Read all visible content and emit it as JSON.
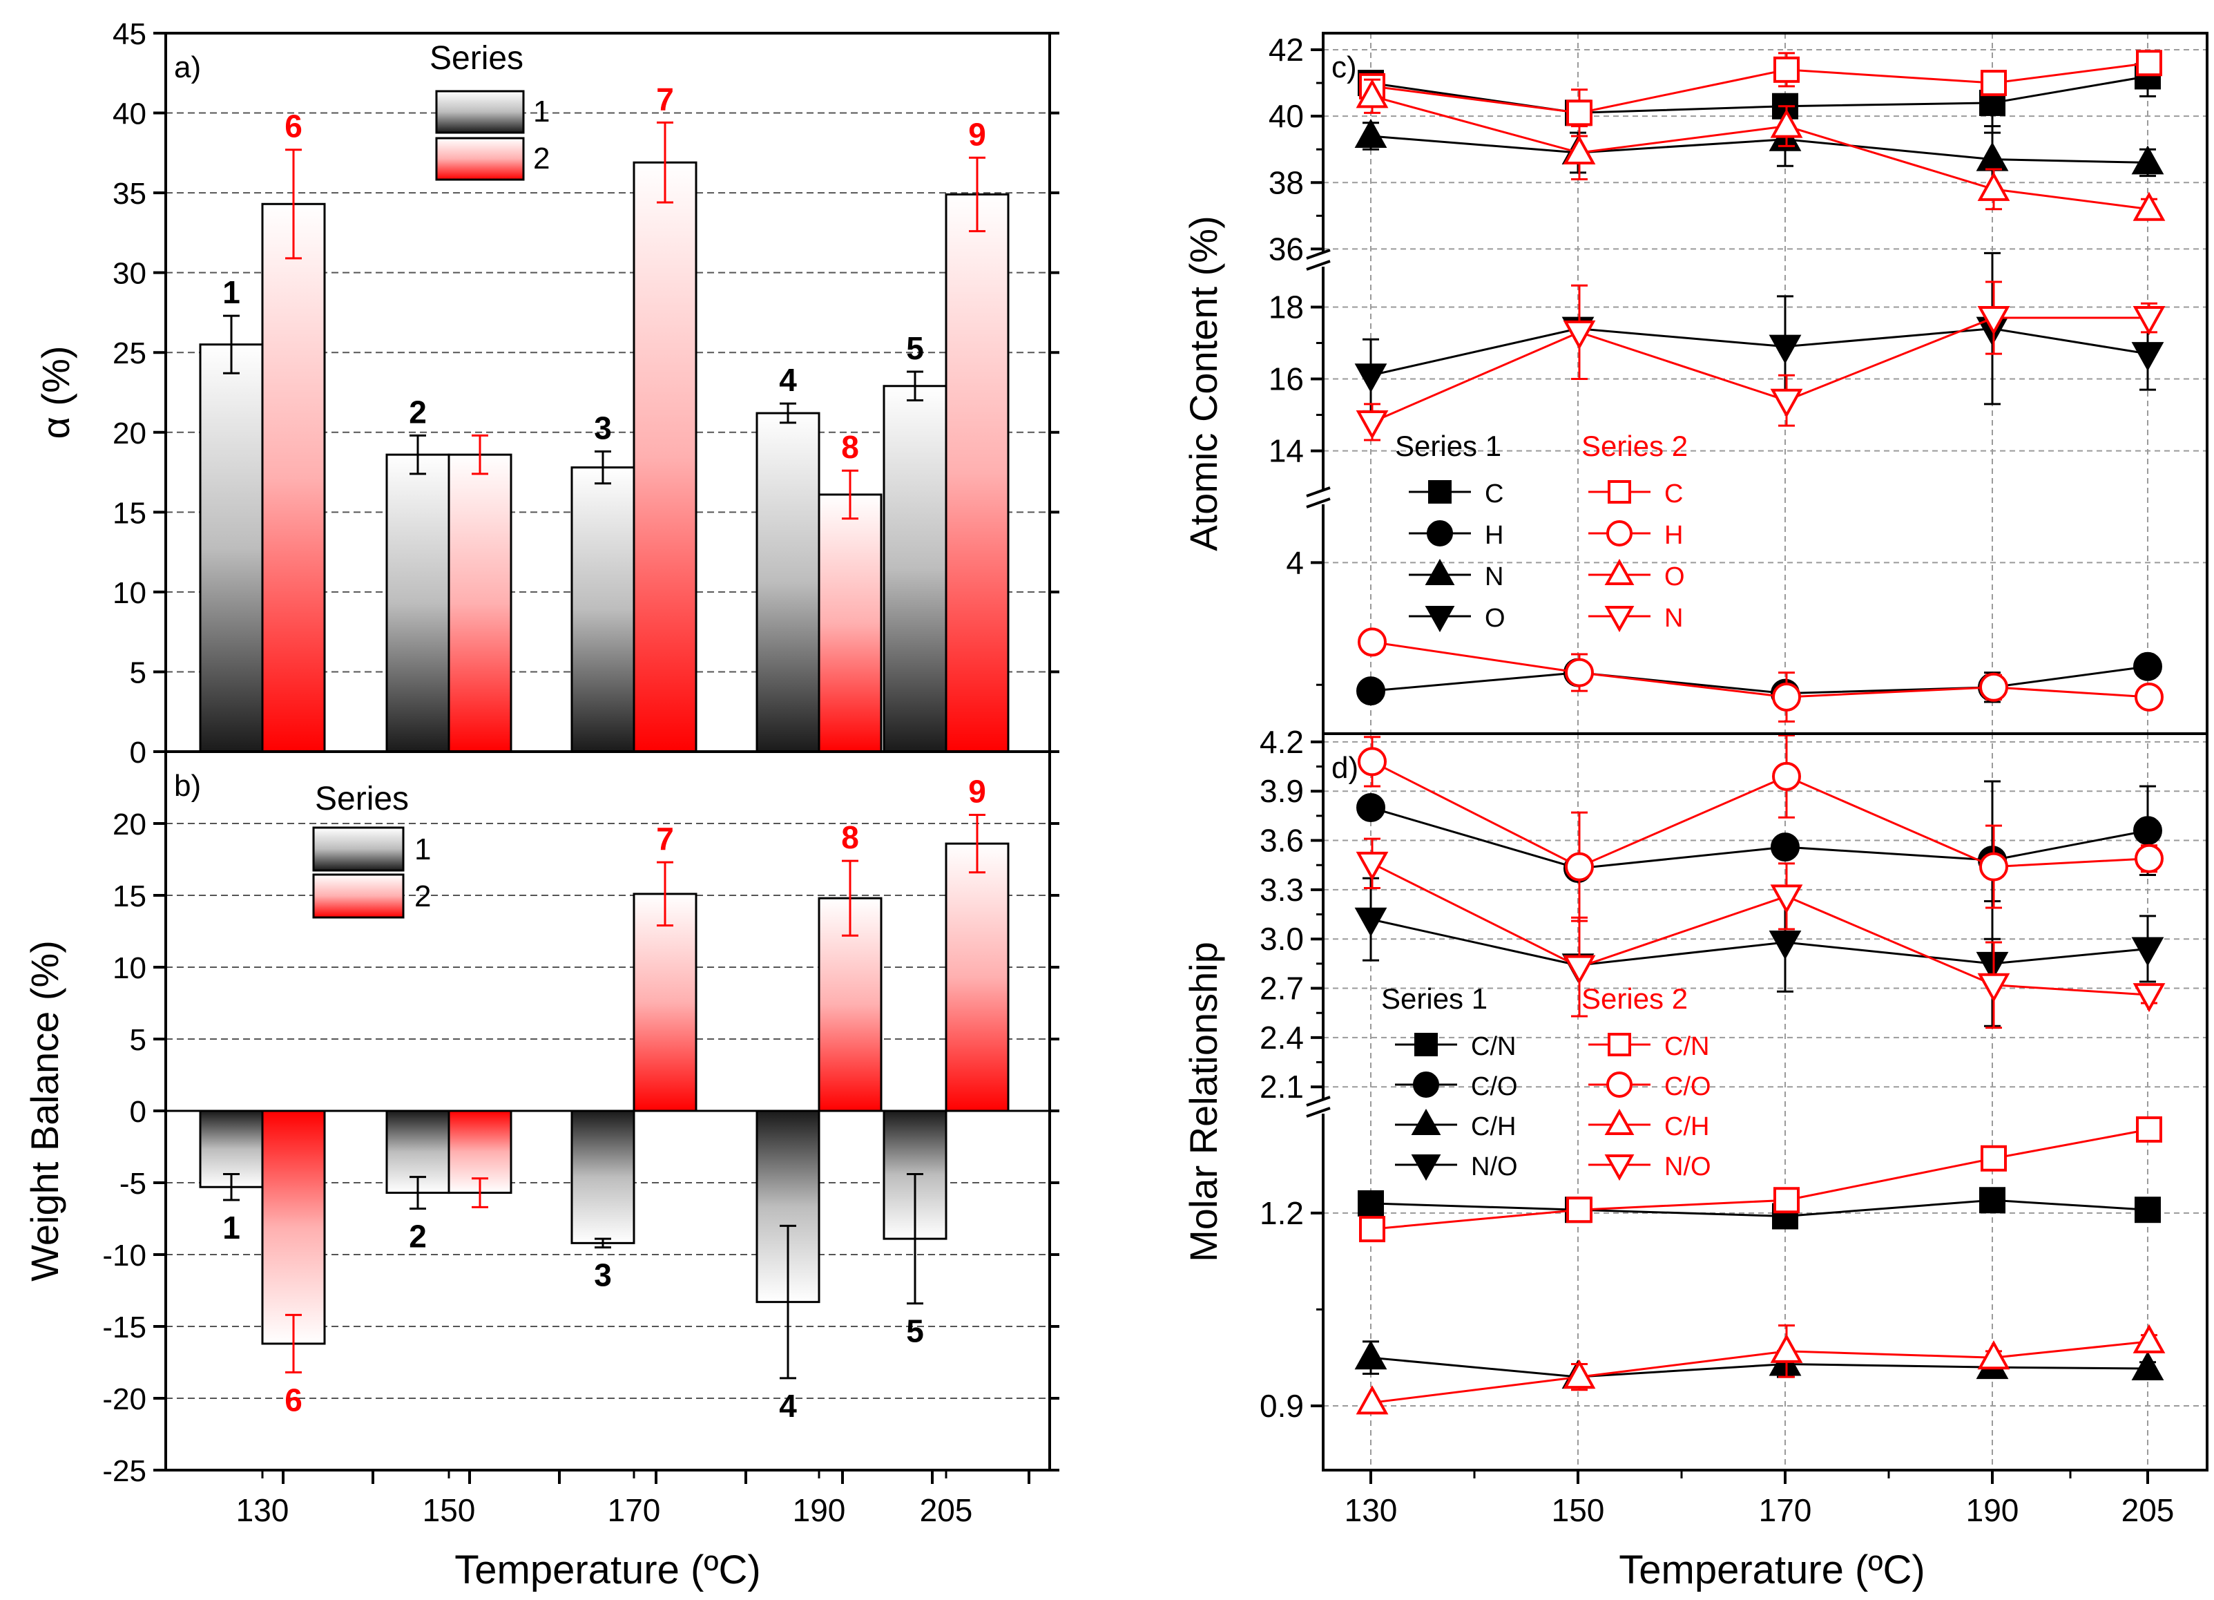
{
  "colors": {
    "series1": "#000000",
    "series2": "#ff0000",
    "grid": "#9a9a9a"
  },
  "chart_data": [
    {
      "id": "a",
      "type": "bar",
      "panel_label": "a)",
      "ylabel": "α (%)",
      "ylim": [
        0,
        45
      ],
      "yticks": [
        0,
        5,
        10,
        15,
        20,
        25,
        30,
        35,
        40,
        45
      ],
      "categories": [
        "130",
        "150",
        "170",
        "190",
        "205"
      ],
      "legend_title": "Series",
      "series": [
        {
          "name": "1",
          "values": [
            25.5,
            18.6,
            17.8,
            21.2,
            22.9
          ],
          "errors": [
            1.8,
            1.2,
            1.0,
            0.6,
            0.9
          ],
          "labels": [
            "1",
            "2",
            "3",
            "4",
            "5"
          ]
        },
        {
          "name": "2",
          "values": [
            34.3,
            18.6,
            36.9,
            16.1,
            34.9
          ],
          "errors": [
            3.4,
            1.2,
            2.5,
            1.5,
            2.3
          ],
          "labels": [
            "6",
            "",
            "7",
            "8",
            "9"
          ]
        }
      ]
    },
    {
      "id": "b",
      "type": "bar",
      "panel_label": "b)",
      "ylabel": "Weight Balance (%)",
      "xlabel": "Temperature (ºC)",
      "ylim": [
        -25,
        25
      ],
      "yticks": [
        -25,
        -20,
        -15,
        -10,
        -5,
        0,
        5,
        10,
        15,
        20
      ],
      "categories": [
        "130",
        "150",
        "170",
        "190",
        "205"
      ],
      "legend_title": "Series",
      "series": [
        {
          "name": "1",
          "values": [
            -5.3,
            -5.7,
            -9.2,
            -13.3,
            -8.9
          ],
          "errors": [
            0.9,
            1.1,
            0.3,
            5.3,
            4.5
          ],
          "labels": [
            "1",
            "2",
            "3",
            "4",
            "5"
          ]
        },
        {
          "name": "2",
          "values": [
            -16.2,
            -5.7,
            15.1,
            14.8,
            18.6
          ],
          "errors": [
            2.0,
            1.0,
            2.2,
            2.6,
            2.0
          ],
          "labels": [
            "6",
            "",
            "7",
            "8",
            "9"
          ]
        }
      ]
    },
    {
      "id": "c",
      "type": "line",
      "panel_label": "c)",
      "ylabel": "Atomic Content (%)",
      "x": [
        130,
        150,
        170,
        190,
        205
      ],
      "xticks": [
        "130",
        "150",
        "170",
        "190",
        "205"
      ],
      "ytick_labels": [
        "4",
        "14",
        "16",
        "18",
        "36",
        "38",
        "40",
        "42"
      ],
      "legend_titles": [
        "Series 1",
        "Series 2"
      ],
      "series": [
        {
          "name": "C",
          "group": "1",
          "marker": "square",
          "filled": true,
          "values": [
            41.0,
            40.1,
            40.3,
            40.4,
            41.2
          ],
          "errors": [
            0.3,
            0.2,
            0.3,
            0.9,
            0.6
          ]
        },
        {
          "name": "H",
          "group": "1",
          "marker": "circle",
          "filled": true,
          "values": [
            2.95,
            3.1,
            2.93,
            2.98,
            3.15
          ],
          "errors": [
            0.0,
            0.0,
            0.0,
            0.12,
            0.0
          ]
        },
        {
          "name": "N",
          "group": "1",
          "marker": "triangle-up",
          "filled": true,
          "values": [
            39.4,
            38.9,
            39.3,
            38.7,
            38.6
          ],
          "errors": [
            0.4,
            0.6,
            0.8,
            1.0,
            0.4
          ]
        },
        {
          "name": "O",
          "group": "1",
          "marker": "triangle-down",
          "filled": true,
          "values": [
            16.1,
            17.4,
            16.9,
            17.4,
            16.7
          ],
          "errors": [
            1.0,
            0.0,
            1.4,
            2.1,
            1.0
          ]
        },
        {
          "name": "C",
          "group": "2",
          "marker": "square",
          "filled": false,
          "values": [
            40.9,
            40.1,
            41.4,
            41.0,
            41.6
          ],
          "errors": [
            0.3,
            0.7,
            0.5,
            0.3,
            0.2
          ]
        },
        {
          "name": "H",
          "group": "2",
          "marker": "circle",
          "filled": false,
          "values": [
            3.35,
            3.1,
            2.9,
            2.98,
            2.9
          ],
          "errors": [
            0.05,
            0.15,
            0.2,
            0.1,
            0.05
          ]
        },
        {
          "name": "O",
          "group": "2",
          "marker": "triangle-up",
          "filled": false,
          "values": [
            40.6,
            38.9,
            39.7,
            37.8,
            37.2
          ],
          "errors": [
            0.5,
            0.8,
            0.6,
            0.6,
            0.3
          ]
        },
        {
          "name": "N",
          "group": "2",
          "marker": "triangle-down",
          "filled": false,
          "values": [
            14.8,
            17.3,
            15.4,
            17.7,
            17.7
          ],
          "errors": [
            0.5,
            1.3,
            0.7,
            1.0,
            0.4
          ]
        }
      ]
    },
    {
      "id": "d",
      "type": "line",
      "panel_label": "d)",
      "ylabel": "Molar Relationship",
      "xlabel": "Temperature (ºC)",
      "x": [
        130,
        150,
        170,
        190,
        205
      ],
      "xticks": [
        "130",
        "150",
        "170",
        "190",
        "205"
      ],
      "ytick_labels": [
        "0.9",
        "1.2",
        "2.1",
        "2.4",
        "2.7",
        "3.0",
        "3.3",
        "3.6",
        "3.9",
        "4.2"
      ],
      "legend_titles": [
        "Series 1",
        "Series 2"
      ],
      "series": [
        {
          "name": "C/N",
          "group": "1",
          "marker": "square",
          "filled": true,
          "values": [
            1.215,
            1.205,
            1.195,
            1.22,
            1.205
          ],
          "errors": [
            0,
            0,
            0,
            0,
            0
          ]
        },
        {
          "name": "C/O",
          "group": "1",
          "marker": "circle",
          "filled": true,
          "values": [
            3.8,
            3.43,
            3.56,
            3.48,
            3.66
          ],
          "errors": [
            0,
            0,
            0,
            0.48,
            0.27
          ]
        },
        {
          "name": "C/H",
          "group": "1",
          "marker": "triangle-up",
          "filled": true,
          "values": [
            0.975,
            0.945,
            0.965,
            0.96,
            0.958
          ],
          "errors": [
            0.025,
            0,
            0.02,
            0.01,
            0.01
          ]
        },
        {
          "name": "N/O",
          "group": "1",
          "marker": "triangle-down",
          "filled": true,
          "values": [
            3.12,
            2.84,
            2.98,
            2.85,
            2.94
          ],
          "errors": [
            0.25,
            0,
            0.3,
            0.38,
            0.2
          ]
        },
        {
          "name": "C/N",
          "group": "2",
          "marker": "square",
          "filled": false,
          "values": [
            1.175,
            1.205,
            1.22,
            1.285,
            1.33
          ],
          "errors": [
            0,
            0,
            0,
            0,
            0
          ]
        },
        {
          "name": "C/O",
          "group": "2",
          "marker": "circle",
          "filled": false,
          "values": [
            4.08,
            3.44,
            3.99,
            3.44,
            3.49
          ],
          "errors": [
            0.15,
            0.33,
            0.25,
            0.25,
            0.08
          ]
        },
        {
          "name": "C/H",
          "group": "2",
          "marker": "triangle-up",
          "filled": false,
          "values": [
            0.905,
            0.945,
            0.985,
            0.975,
            1.0
          ],
          "errors": [
            0,
            0.02,
            0.04,
            0.01,
            0.01
          ]
        },
        {
          "name": "N/O",
          "group": "2",
          "marker": "triangle-down",
          "filled": false,
          "values": [
            3.46,
            2.83,
            3.26,
            2.72,
            2.66
          ],
          "errors": [
            0.15,
            0.3,
            0.2,
            0.26,
            0.05
          ]
        }
      ]
    }
  ]
}
